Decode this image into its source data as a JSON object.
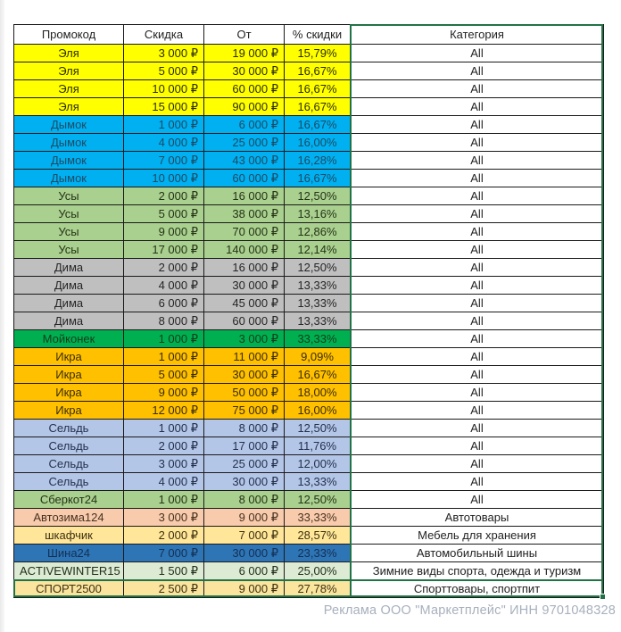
{
  "table": {
    "headers": [
      "Промокод",
      "Скидка",
      "От",
      "% скидки",
      "Категория"
    ],
    "rows": [
      {
        "promo": "Эля",
        "discount": "3 000 ₽",
        "from": "19 000 ₽",
        "percent": "15,79%",
        "category": "All",
        "bg": "#FFFF00",
        "fg": "#2e2e00"
      },
      {
        "promo": "Эля",
        "discount": "5 000 ₽",
        "from": "30 000 ₽",
        "percent": "16,67%",
        "category": "All",
        "bg": "#FFFF00",
        "fg": "#2e2e00"
      },
      {
        "promo": "Эля",
        "discount": "10 000 ₽",
        "from": "60 000 ₽",
        "percent": "16,67%",
        "category": "All",
        "bg": "#FFFF00",
        "fg": "#2e2e00"
      },
      {
        "promo": "Эля",
        "discount": "15 000 ₽",
        "from": "90 000 ₽",
        "percent": "16,67%",
        "category": "All",
        "bg": "#FFFF00",
        "fg": "#2e2e00"
      },
      {
        "promo": "Дымок",
        "discount": "1 000 ₽",
        "from": "6 000 ₽",
        "percent": "16,67%",
        "category": "All",
        "bg": "#00B0F0",
        "fg": "#1c4a64"
      },
      {
        "promo": "Дымок",
        "discount": "4 000 ₽",
        "from": "25 000 ₽",
        "percent": "16,00%",
        "category": "All",
        "bg": "#00B0F0",
        "fg": "#1c4a64"
      },
      {
        "promo": "Дымок",
        "discount": "7 000 ₽",
        "from": "43 000 ₽",
        "percent": "16,28%",
        "category": "All",
        "bg": "#00B0F0",
        "fg": "#1c4a64"
      },
      {
        "promo": "Дымок",
        "discount": "10 000 ₽",
        "from": "60 000 ₽",
        "percent": "16,67%",
        "category": "All",
        "bg": "#00B0F0",
        "fg": "#1c4a64"
      },
      {
        "promo": "Усы",
        "discount": "2 000 ₽",
        "from": "16 000 ₽",
        "percent": "12,50%",
        "category": "All",
        "bg": "#A9D08E",
        "fg": "#263318"
      },
      {
        "promo": "Усы",
        "discount": "5 000 ₽",
        "from": "38 000 ₽",
        "percent": "13,16%",
        "category": "All",
        "bg": "#A9D08E",
        "fg": "#263318"
      },
      {
        "promo": "Усы",
        "discount": "9 000 ₽",
        "from": "70 000 ₽",
        "percent": "12,86%",
        "category": "All",
        "bg": "#A9D08E",
        "fg": "#263318"
      },
      {
        "promo": "Усы",
        "discount": "17 000 ₽",
        "from": "140 000 ₽",
        "percent": "12,14%",
        "category": "All",
        "bg": "#A9D08E",
        "fg": "#263318"
      },
      {
        "promo": "Дима",
        "discount": "2 000 ₽",
        "from": "16 000 ₽",
        "percent": "12,50%",
        "category": "All",
        "bg": "#BFBFBF",
        "fg": "#262626"
      },
      {
        "promo": "Дима",
        "discount": "4 000 ₽",
        "from": "30 000 ₽",
        "percent": "13,33%",
        "category": "All",
        "bg": "#BFBFBF",
        "fg": "#262626"
      },
      {
        "promo": "Дима",
        "discount": "6 000 ₽",
        "from": "45 000 ₽",
        "percent": "13,33%",
        "category": "All",
        "bg": "#BFBFBF",
        "fg": "#262626"
      },
      {
        "promo": "Дима",
        "discount": "8 000 ₽",
        "from": "60 000 ₽",
        "percent": "13,33%",
        "category": "All",
        "bg": "#BFBFBF",
        "fg": "#262626"
      },
      {
        "promo": "Мойконек",
        "discount": "1 000 ₽",
        "from": "3 000 ₽",
        "percent": "33,33%",
        "category": "All",
        "bg": "#00B050",
        "fg": "#123c1d"
      },
      {
        "promo": "Икра",
        "discount": "1 000 ₽",
        "from": "11 000 ₽",
        "percent": "9,09%",
        "category": "All",
        "bg": "#FFC000",
        "fg": "#3b2d00"
      },
      {
        "promo": "Икра",
        "discount": "5 000 ₽",
        "from": "30 000 ₽",
        "percent": "16,67%",
        "category": "All",
        "bg": "#FFC000",
        "fg": "#3b2d00"
      },
      {
        "promo": "Икра",
        "discount": "9 000 ₽",
        "from": "50 000 ₽",
        "percent": "18,00%",
        "category": "All",
        "bg": "#FFC000",
        "fg": "#3b2d00"
      },
      {
        "promo": "Икра",
        "discount": "12 000 ₽",
        "from": "75 000 ₽",
        "percent": "16,00%",
        "category": "All",
        "bg": "#FFC000",
        "fg": "#3b2d00"
      },
      {
        "promo": "Сельдь",
        "discount": "1 000 ₽",
        "from": "8 000 ₽",
        "percent": "12,50%",
        "category": "All",
        "bg": "#B4C6E7",
        "fg": "#22304c"
      },
      {
        "promo": "Сельдь",
        "discount": "2 000 ₽",
        "from": "17 000 ₽",
        "percent": "11,76%",
        "category": "All",
        "bg": "#B4C6E7",
        "fg": "#22304c"
      },
      {
        "promo": "Сельдь",
        "discount": "3 000 ₽",
        "from": "25 000 ₽",
        "percent": "12,00%",
        "category": "All",
        "bg": "#B4C6E7",
        "fg": "#22304c"
      },
      {
        "promo": "Сельдь",
        "discount": "4 000 ₽",
        "from": "30 000 ₽",
        "percent": "13,33%",
        "category": "All",
        "bg": "#B4C6E7",
        "fg": "#22304c"
      },
      {
        "promo": "Сберкот24",
        "discount": "1 000 ₽",
        "from": "8 000 ₽",
        "percent": "12,50%",
        "category": "All",
        "bg": "#A9D08E",
        "fg": "#263318"
      },
      {
        "promo": "Автозима124",
        "discount": "3 000 ₽",
        "from": "9 000 ₽",
        "percent": "33,33%",
        "category": "Автотовары",
        "bg": "#F8CBAD",
        "fg": "#48321f"
      },
      {
        "promo": "шкафчик",
        "discount": "2 000 ₽",
        "from": "7 000 ₽",
        "percent": "28,57%",
        "category": "Мебель для хранения",
        "bg": "#FFE699",
        "fg": "#3d3111"
      },
      {
        "promo": "Шина24",
        "discount": "7 000 ₽",
        "from": "30 000 ₽",
        "percent": "23,33%",
        "category": "Автомобильный шины",
        "bg": "#2E75B6",
        "fg": "#152f52"
      },
      {
        "promo": "ACTIVEWINTER15",
        "discount": "1 500 ₽",
        "from": "6 000 ₽",
        "percent": "25,00%",
        "category": "Зимние виды спорта, одежда и туризм",
        "bg": "#DEEBD4",
        "fg": "#21301b"
      },
      {
        "promo": "СПОРТ2500",
        "discount": "2 500 ₽",
        "from": "9 000 ₽",
        "percent": "27,78%",
        "category": "Спорттовары, спортпит",
        "bg": "#FAE49E",
        "fg": "#3d3111"
      }
    ]
  },
  "selection": {
    "marquee_color": "#217346"
  },
  "footer": {
    "text": "Реклама ООО \"Маркетплейс\" ИНН 9701048328"
  }
}
